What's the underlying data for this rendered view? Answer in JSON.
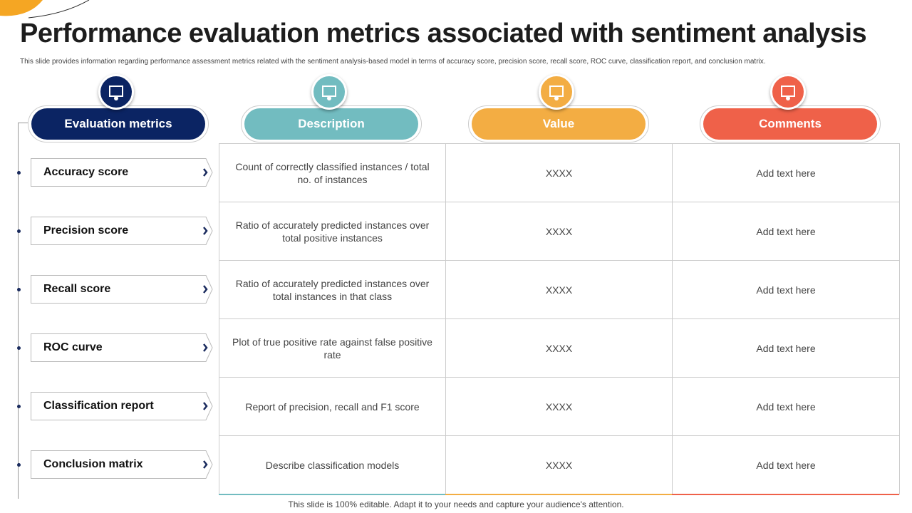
{
  "header": {
    "title": "Performance evaluation metrics associated with sentiment analysis",
    "subtitle": "This slide provides information regarding performance assessment metrics related with the sentiment analysis-based model in terms of accuracy score, precision score, recall score, ROC curve, classification report, and conclusion matrix."
  },
  "columns": [
    "Evaluation metrics",
    "Description",
    "Value",
    "Comments"
  ],
  "table": {
    "rows": [
      [
        "Accuracy score",
        "Count of correctly classified instances / total no. of instances",
        "XXXX",
        "Add text here"
      ],
      [
        "Precision score",
        "Ratio of accurately predicted instances over total positive instances",
        "XXXX",
        "Add text here"
      ],
      [
        "Recall score",
        "Ratio of accurately predicted instances over total instances in that class",
        "XXXX",
        "Add text here"
      ],
      [
        "ROC curve",
        "Plot of true positive rate against false positive rate",
        "XXXX",
        "Add text here"
      ],
      [
        "Classification report",
        "Report of precision, recall and F1 score",
        "XXXX",
        "Add text here"
      ],
      [
        "Conclusion matrix",
        "Describe classification models",
        "XXXX",
        "Add text here"
      ]
    ]
  },
  "footer": "This slide is 100% editable. Adapt it to your needs and capture your audience's attention."
}
